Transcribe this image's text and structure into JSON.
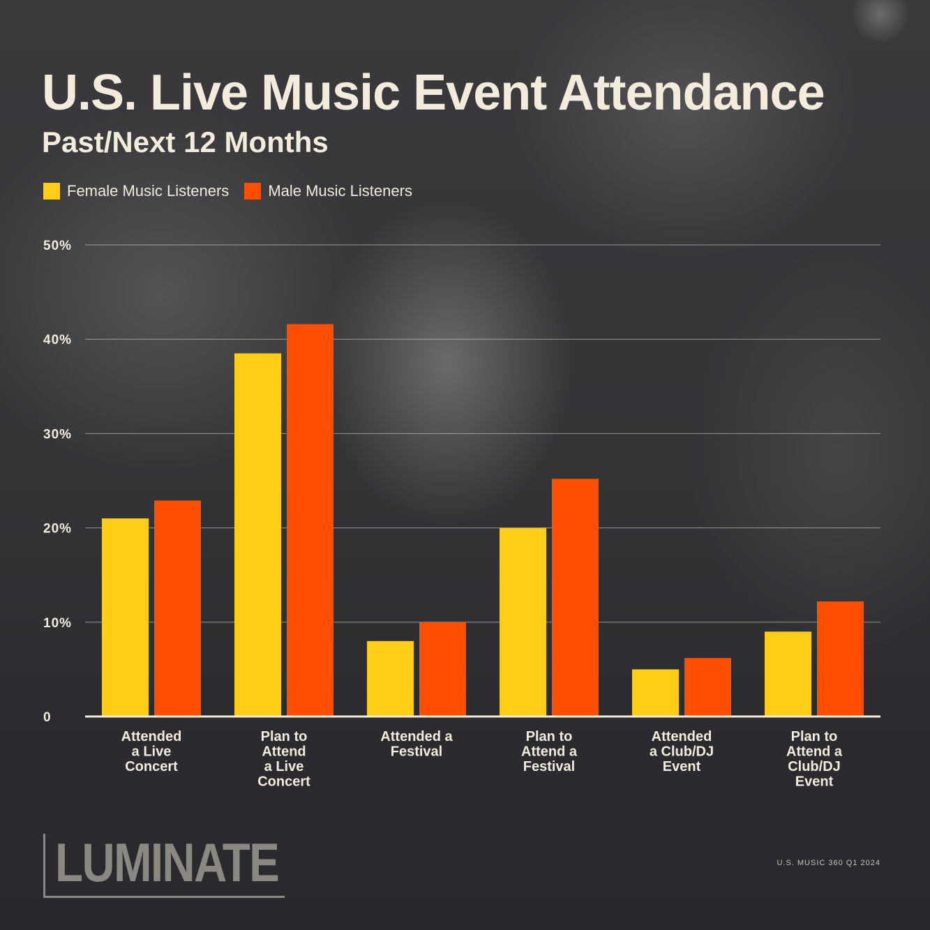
{
  "header": {
    "title": "U.S. Live Music Event Attendance",
    "subtitle": "Past/Next 12 Months"
  },
  "legend": [
    {
      "label": "Female Music Listeners",
      "color": "#ffcc17"
    },
    {
      "label": "Male Music Listeners",
      "color": "#ff4e00"
    }
  ],
  "footer": {
    "logo": "LUMINATE",
    "source": "U.S. MUSIC 360 Q1 2024"
  },
  "chart_data": {
    "type": "bar",
    "categories": [
      [
        "Attended",
        "a Live",
        "Concert"
      ],
      [
        "Plan to",
        "Attend",
        "a Live",
        "Concert"
      ],
      [
        "Attended a",
        "Festival"
      ],
      [
        "Plan to",
        "Attend a",
        "Festival"
      ],
      [
        "Attended",
        "a Club/DJ",
        "Event"
      ],
      [
        "Plan to",
        "Attend a",
        "Club/DJ",
        "Event"
      ]
    ],
    "series": [
      {
        "name": "Female Music Listeners",
        "color": "#ffcc17",
        "values": [
          21,
          38.5,
          8,
          20,
          5,
          9
        ]
      },
      {
        "name": "Male Music Listeners",
        "color": "#ff4e00",
        "values": [
          22.9,
          41.6,
          10,
          25.2,
          6.2,
          12.2
        ]
      }
    ],
    "y_ticks": [
      "0",
      "10%",
      "20%",
      "30%",
      "40%",
      "50%"
    ],
    "ylim": [
      0,
      50
    ],
    "grid": true,
    "legend_position": "top-left"
  }
}
